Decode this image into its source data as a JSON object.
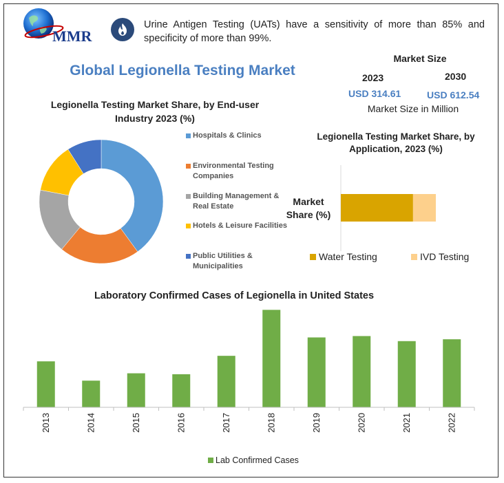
{
  "logo": {
    "text": "MMR",
    "icon": "globe-icon"
  },
  "fact": {
    "icon": "flame-icon",
    "text": "Urine Antigen Testing (UATs) have a sensitivity of more than 85% and specificity of more than 99%."
  },
  "main_title": "Global Legionella Testing Market",
  "market_size": {
    "title": "Market Size",
    "year_start": "2023",
    "year_end": "2030",
    "value_start": "USD 314.61",
    "value_end": "USD 612.54",
    "subtitle": "Market Size in Million"
  },
  "colors": {
    "blue": "#5b9bd5",
    "orange": "#ed7d31",
    "gray": "#a5a5a5",
    "yellow": "#ffc000",
    "darkblue": "#4472c4",
    "green": "#70ad47",
    "gold": "#d9a400",
    "peach": "#fdd08c",
    "title_blue": "#4a7fc1"
  },
  "chart_data": [
    {
      "type": "pie",
      "title": "Legionella Testing Market Share, by End-user Industry 2023 (%)",
      "legend_position": "right",
      "categories": [
        "Hospitals & Clinics",
        "Environmental Testing Companies",
        "Building Management & Real Estate",
        "Hotels & Leisure Facilities",
        "Public Utilities & Municipalities"
      ],
      "values": [
        40,
        21,
        17,
        13,
        9
      ],
      "colors": [
        "#5b9bd5",
        "#ed7d31",
        "#a5a5a5",
        "#ffc000",
        "#4472c4"
      ]
    },
    {
      "type": "bar",
      "orientation": "horizontal",
      "stacked": true,
      "title": "Legionella Testing Market Share, by Application, 2023 (%)",
      "categories": [
        "Market Share (%)"
      ],
      "series": [
        {
          "name": "Water Testing",
          "values": [
            76
          ],
          "color": "#d9a400"
        },
        {
          "name": "IVD Testing",
          "values": [
            24
          ],
          "color": "#fdd08c"
        }
      ],
      "xlim": [
        0,
        100
      ],
      "legend_position": "bottom"
    },
    {
      "type": "bar",
      "title": "Laboratory Confirmed Cases of Legionella in United States",
      "categories": [
        "2013",
        "2014",
        "2015",
        "2016",
        "2017",
        "2018",
        "2019",
        "2020",
        "2021",
        "2022"
      ],
      "series": [
        {
          "name": "Lab Confirmed Cases",
          "values": [
            5000,
            2900,
            3700,
            3600,
            5600,
            10600,
            7600,
            7750,
            7200,
            7400
          ],
          "color": "#70ad47"
        }
      ],
      "ylim": [
        0,
        11000
      ],
      "legend_position": "bottom"
    }
  ]
}
